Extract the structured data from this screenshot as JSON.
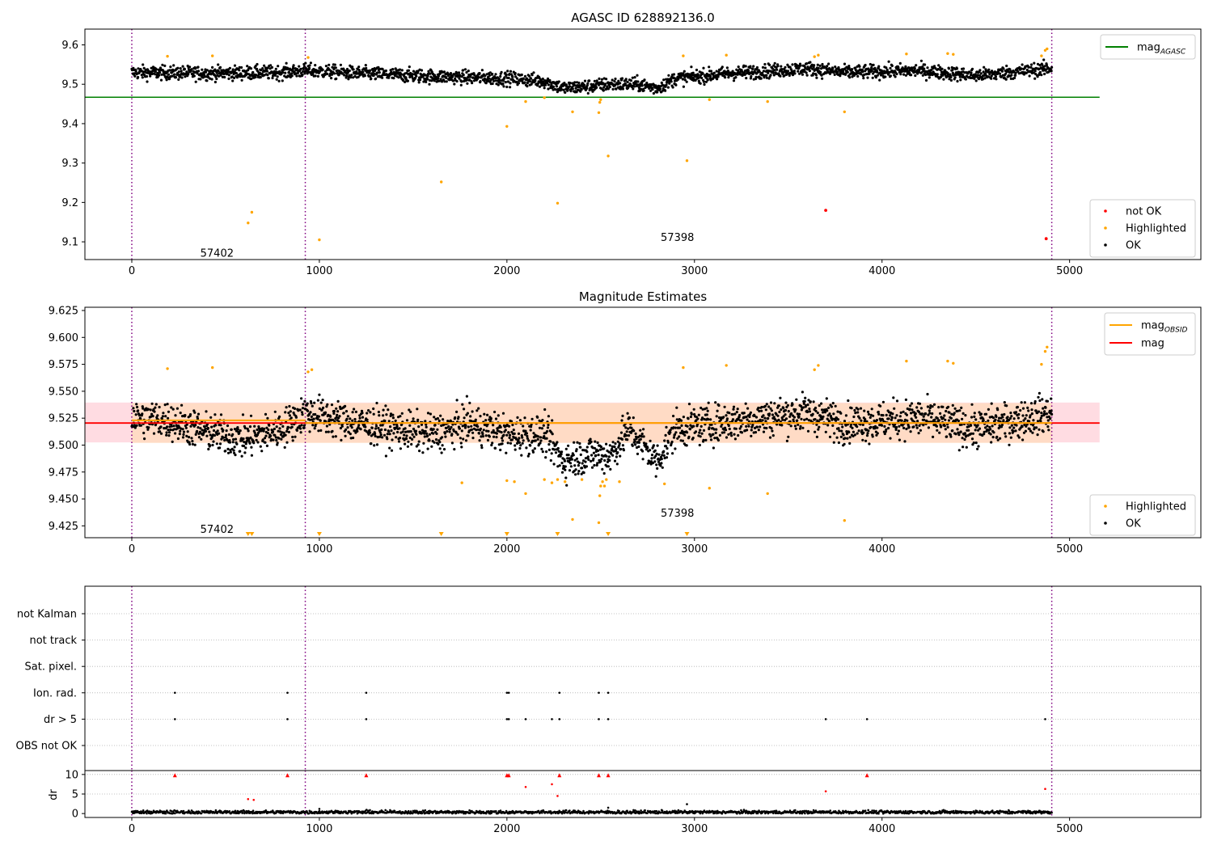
{
  "colors": {
    "ok": "#000000",
    "highlighted": "#ffa500",
    "not_ok": "#ff0000",
    "mag_agasc_line": "#008000",
    "mag_line": "#ff0000",
    "mag_obsid_line": "#ffa500",
    "obsid_boundary": "#800080",
    "band_mag": "#ffc0cb",
    "band_obsid": "#ffdab9"
  },
  "chart_data": [
    {
      "id": "top",
      "type": "scatter",
      "title": "AGASC ID 628892136.0",
      "xlim": [
        -250,
        5700
      ],
      "ylim": [
        9.055,
        9.64
      ],
      "xticks": [
        0,
        1000,
        2000,
        3000,
        4000,
        5000
      ],
      "yticks": [
        9.1,
        9.2,
        9.3,
        9.4,
        9.5,
        9.6
      ],
      "ytick_labels": [
        "9.1",
        "9.2",
        "9.3",
        "9.4",
        "9.5",
        "9.6"
      ],
      "obsid_boundaries": [
        0,
        925,
        4905
      ],
      "obsid_labels": [
        {
          "x": 365,
          "y": 9.07,
          "text": "57402"
        },
        {
          "x": 2820,
          "y": 9.11,
          "text": "57398"
        }
      ],
      "mag_agasc": {
        "value": 9.467,
        "x_range": [
          -250,
          5160
        ]
      },
      "legend_lines": [
        {
          "label": "mag",
          "sub": "AGASC",
          "color": "#008000"
        }
      ],
      "legend_points": [
        {
          "label": "not OK",
          "color": "#ff0000"
        },
        {
          "label": "Highlighted",
          "color": "#ffa500"
        },
        {
          "label": "OK",
          "color": "#000000"
        }
      ],
      "ok_trend": [
        [
          0,
          9.53
        ],
        [
          400,
          9.528
        ],
        [
          800,
          9.53
        ],
        [
          925,
          9.535
        ],
        [
          1200,
          9.528
        ],
        [
          1600,
          9.52
        ],
        [
          2000,
          9.515
        ],
        [
          2200,
          9.508
        ],
        [
          2300,
          9.49
        ],
        [
          2450,
          9.495
        ],
        [
          2550,
          9.5
        ],
        [
          2700,
          9.5
        ],
        [
          2800,
          9.49
        ],
        [
          2900,
          9.515
        ],
        [
          3200,
          9.528
        ],
        [
          3600,
          9.54
        ],
        [
          3800,
          9.53
        ],
        [
          4200,
          9.535
        ],
        [
          4500,
          9.522
        ],
        [
          4900,
          9.54
        ]
      ],
      "ok_spread": 0.014,
      "ok_count": 2400,
      "highlighted": [
        [
          190,
          9.571
        ],
        [
          430,
          9.572
        ],
        [
          620,
          9.148
        ],
        [
          640,
          9.175
        ],
        [
          940,
          9.568
        ],
        [
          1000,
          9.105
        ],
        [
          1650,
          9.252
        ],
        [
          2000,
          9.393
        ],
        [
          2100,
          9.456
        ],
        [
          2200,
          9.466
        ],
        [
          2270,
          9.198
        ],
        [
          2350,
          9.43
        ],
        [
          2490,
          9.428
        ],
        [
          2495,
          9.454
        ],
        [
          2500,
          9.461
        ],
        [
          2540,
          9.318
        ],
        [
          2940,
          9.572
        ],
        [
          2960,
          9.306
        ],
        [
          3080,
          9.461
        ],
        [
          3170,
          9.574
        ],
        [
          3390,
          9.456
        ],
        [
          3640,
          9.57
        ],
        [
          3660,
          9.574
        ],
        [
          3800,
          9.43
        ],
        [
          4130,
          9.577
        ],
        [
          4350,
          9.578
        ],
        [
          4380,
          9.576
        ],
        [
          4850,
          9.572
        ],
        [
          4870,
          9.586
        ],
        [
          4880,
          9.59
        ]
      ],
      "not_ok": [
        [
          3700,
          9.18
        ],
        [
          4875,
          9.108
        ]
      ]
    },
    {
      "id": "middle",
      "type": "scatter",
      "title": "Magnitude Estimates",
      "xlim": [
        -250,
        5700
      ],
      "ylim": [
        9.414,
        9.628
      ],
      "xticks": [
        0,
        1000,
        2000,
        3000,
        4000,
        5000
      ],
      "yticks": [
        9.425,
        9.45,
        9.475,
        9.5,
        9.525,
        9.55,
        9.575,
        9.6,
        9.625
      ],
      "ytick_labels": [
        "9.425",
        "9.450",
        "9.475",
        "9.500",
        "9.525",
        "9.550",
        "9.575",
        "9.600",
        "9.625"
      ],
      "obsid_boundaries": [
        0,
        925,
        4905
      ],
      "obsid_labels": [
        {
          "x": 365,
          "y": 9.4215,
          "text": "57402"
        },
        {
          "x": 2820,
          "y": 9.4365,
          "text": "57398"
        }
      ],
      "mag": {
        "value": 9.5205,
        "band": [
          9.5025,
          9.5395
        ],
        "x_range": [
          -250,
          5160
        ]
      },
      "mag_obsid": [
        {
          "x": [
            0,
            925
          ],
          "value": 9.523,
          "band": [
            9.502,
            9.539
          ]
        },
        {
          "x": [
            925,
            4905
          ],
          "value": 9.5205,
          "band": [
            9.502,
            9.539
          ]
        }
      ],
      "legend_lines": [
        {
          "label": "mag",
          "sub": "OBSID",
          "color": "#ffa500"
        },
        {
          "label": "mag",
          "sub": "",
          "color": "#ff0000"
        }
      ],
      "legend_points": [
        {
          "label": "Highlighted",
          "color": "#ffa500"
        },
        {
          "label": "OK",
          "color": "#000000"
        }
      ],
      "ok_trend": [
        [
          0,
          9.525
        ],
        [
          200,
          9.523
        ],
        [
          400,
          9.512
        ],
        [
          600,
          9.505
        ],
        [
          800,
          9.515
        ],
        [
          925,
          9.53
        ],
        [
          1200,
          9.52
        ],
        [
          1600,
          9.51
        ],
        [
          1800,
          9.52
        ],
        [
          2000,
          9.51
        ],
        [
          2200,
          9.51
        ],
        [
          2300,
          9.485
        ],
        [
          2450,
          9.492
        ],
        [
          2550,
          9.49
        ],
        [
          2650,
          9.515
        ],
        [
          2800,
          9.485
        ],
        [
          2900,
          9.515
        ],
        [
          3200,
          9.522
        ],
        [
          3600,
          9.53
        ],
        [
          3800,
          9.52
        ],
        [
          4200,
          9.525
        ],
        [
          4500,
          9.515
        ],
        [
          4900,
          9.53
        ]
      ],
      "ok_spread": 0.014,
      "ok_count": 2400,
      "highlighted": [
        [
          190,
          9.571
        ],
        [
          430,
          9.572
        ],
        [
          940,
          9.568
        ],
        [
          960,
          9.57
        ],
        [
          1760,
          9.465
        ],
        [
          2000,
          9.467
        ],
        [
          2040,
          9.466
        ],
        [
          2100,
          9.455
        ],
        [
          2200,
          9.468
        ],
        [
          2240,
          9.465
        ],
        [
          2270,
          9.468
        ],
        [
          2310,
          9.466
        ],
        [
          2350,
          9.431
        ],
        [
          2400,
          9.468
        ],
        [
          2490,
          9.428
        ],
        [
          2495,
          9.453
        ],
        [
          2500,
          9.462
        ],
        [
          2510,
          9.466
        ],
        [
          2520,
          9.462
        ],
        [
          2530,
          9.468
        ],
        [
          2600,
          9.466
        ],
        [
          2840,
          9.464
        ],
        [
          2940,
          9.572
        ],
        [
          3080,
          9.46
        ],
        [
          3170,
          9.574
        ],
        [
          3390,
          9.455
        ],
        [
          3640,
          9.57
        ],
        [
          3660,
          9.574
        ],
        [
          3800,
          9.43
        ],
        [
          4130,
          9.578
        ],
        [
          4350,
          9.578
        ],
        [
          4380,
          9.576
        ],
        [
          4850,
          9.575
        ],
        [
          4870,
          9.587
        ],
        [
          4880,
          9.591
        ]
      ],
      "clipped_low": [
        620,
        640,
        1000,
        1650,
        2000,
        2270,
        2540,
        2960
      ]
    },
    {
      "id": "flags",
      "type": "scatter",
      "xlim": [
        -250,
        5700
      ],
      "obsid_boundaries": [
        0,
        925,
        4905
      ],
      "categories": [
        "not Kalman",
        "not track",
        "Sat. pixel.",
        "Ion. rad.",
        "dr > 5",
        "OBS not OK"
      ],
      "points": {
        "Ion. rad.": [
          230,
          830,
          1250,
          2000,
          2010,
          2280,
          2490,
          2540
        ],
        "dr > 5": [
          230,
          830,
          1250,
          2000,
          2010,
          2100,
          2240,
          2280,
          2490,
          2540,
          3700,
          3920,
          4870
        ]
      }
    },
    {
      "id": "dr",
      "type": "scatter",
      "ylabel": "dr",
      "xlim": [
        -250,
        5700
      ],
      "ylim": [
        -1,
        11
      ],
      "xticks": [
        0,
        1000,
        2000,
        3000,
        4000,
        5000
      ],
      "yticks": [
        0,
        5,
        10
      ],
      "ytick_labels": [
        "0",
        "5",
        "10"
      ],
      "obsid_boundaries": [
        0,
        925,
        4905
      ],
      "dr_high_markers": [
        230,
        830,
        1250,
        2000,
        2010,
        2280,
        2490,
        2540,
        3920
      ],
      "dr_high_value": 9.8,
      "dr_mid": [
        [
          620,
          3.7
        ],
        [
          650,
          3.5
        ],
        [
          2100,
          6.8
        ],
        [
          2240,
          7.5
        ],
        [
          2270,
          4.5
        ],
        [
          3700,
          5.7
        ],
        [
          4870,
          6.3
        ]
      ],
      "dr_other": [
        [
          1000,
          1.2
        ],
        [
          2960,
          2.4
        ],
        [
          2540,
          1.5
        ]
      ]
    }
  ]
}
